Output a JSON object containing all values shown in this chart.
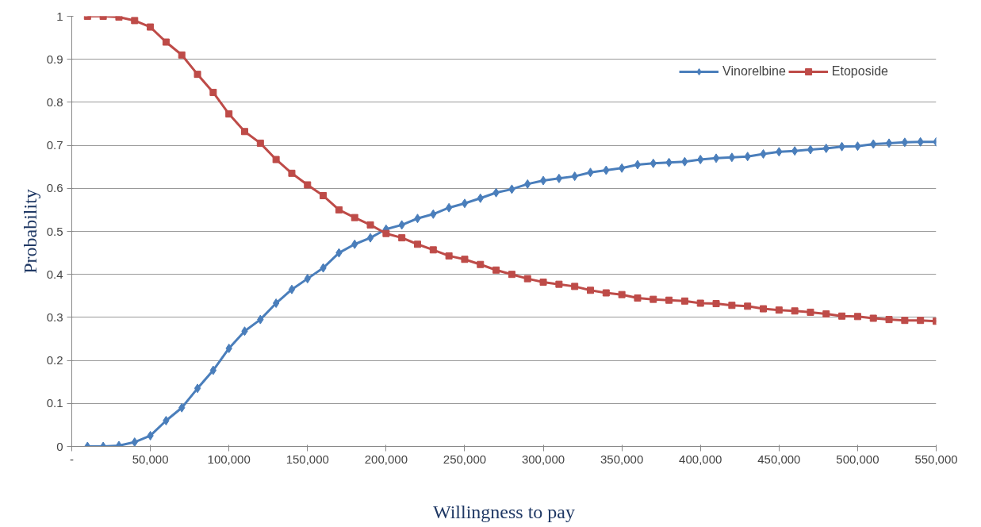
{
  "chart_data": {
    "type": "line",
    "xlabel": "Willingness to pay",
    "ylabel": "Probability",
    "x": [
      10000,
      20000,
      30000,
      40000,
      50000,
      60000,
      70000,
      80000,
      90000,
      100000,
      110000,
      120000,
      130000,
      140000,
      150000,
      160000,
      170000,
      180000,
      190000,
      200000,
      210000,
      220000,
      230000,
      240000,
      250000,
      260000,
      270000,
      280000,
      290000,
      300000,
      310000,
      320000,
      330000,
      340000,
      350000,
      360000,
      370000,
      380000,
      390000,
      400000,
      410000,
      420000,
      430000,
      440000,
      450000,
      460000,
      470000,
      480000,
      490000,
      500000,
      510000,
      520000,
      530000,
      540000,
      550000
    ],
    "series": [
      {
        "name": "Vinorelbine",
        "color": "#4a7ebb",
        "marker": "diamond",
        "values": [
          0,
          0,
          0.002,
          0.01,
          0.025,
          0.06,
          0.09,
          0.135,
          0.177,
          0.228,
          0.268,
          0.295,
          0.333,
          0.365,
          0.39,
          0.415,
          0.45,
          0.47,
          0.485,
          0.505,
          0.515,
          0.53,
          0.54,
          0.555,
          0.565,
          0.577,
          0.59,
          0.598,
          0.61,
          0.618,
          0.623,
          0.628,
          0.637,
          0.642,
          0.647,
          0.655,
          0.658,
          0.66,
          0.662,
          0.667,
          0.67,
          0.672,
          0.674,
          0.68,
          0.685,
          0.687,
          0.69,
          0.693,
          0.697,
          0.698,
          0.703,
          0.705,
          0.707,
          0.708,
          0.708
        ]
      },
      {
        "name": "Etoposide",
        "color": "#be4b48",
        "marker": "square",
        "values": [
          1,
          1,
          0.998,
          0.99,
          0.975,
          0.94,
          0.91,
          0.865,
          0.823,
          0.773,
          0.732,
          0.705,
          0.667,
          0.635,
          0.608,
          0.583,
          0.55,
          0.532,
          0.515,
          0.495,
          0.485,
          0.47,
          0.457,
          0.443,
          0.435,
          0.423,
          0.41,
          0.4,
          0.39,
          0.382,
          0.377,
          0.372,
          0.363,
          0.357,
          0.353,
          0.345,
          0.342,
          0.34,
          0.338,
          0.333,
          0.332,
          0.328,
          0.326,
          0.32,
          0.317,
          0.315,
          0.312,
          0.308,
          0.303,
          0.302,
          0.298,
          0.295,
          0.293,
          0.293,
          0.291
        ]
      }
    ],
    "xlim": [
      0,
      550000
    ],
    "ylim": [
      0,
      1
    ],
    "xticks": [
      {
        "value": 0,
        "label": "-"
      },
      {
        "value": 50000,
        "label": "50,000"
      },
      {
        "value": 100000,
        "label": "100,000"
      },
      {
        "value": 150000,
        "label": "150,000"
      },
      {
        "value": 200000,
        "label": "200,000"
      },
      {
        "value": 250000,
        "label": "250,000"
      },
      {
        "value": 300000,
        "label": "300,000"
      },
      {
        "value": 350000,
        "label": "350,000"
      },
      {
        "value": 400000,
        "label": "400,000"
      },
      {
        "value": 450000,
        "label": "450,000"
      },
      {
        "value": 500000,
        "label": "500,000"
      },
      {
        "value": 550000,
        "label": "550,000"
      }
    ],
    "yticks": [
      0,
      0.1,
      0.2,
      0.3,
      0.4,
      0.5,
      0.6,
      0.7,
      0.8,
      0.9,
      1
    ],
    "grid": "y",
    "legend": "top right",
    "line_style": "solid"
  }
}
